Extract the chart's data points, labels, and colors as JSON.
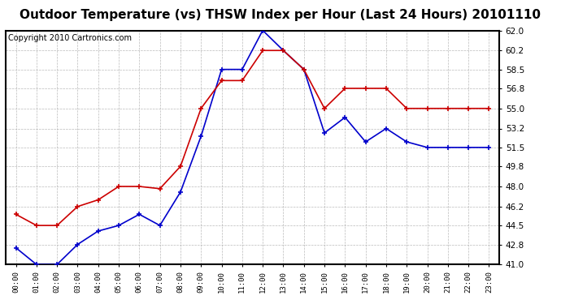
{
  "title": "Outdoor Temperature (vs) THSW Index per Hour (Last 24 Hours) 20101110",
  "copyright": "Copyright 2010 Cartronics.com",
  "hours": [
    "00:00",
    "01:00",
    "02:00",
    "03:00",
    "04:00",
    "05:00",
    "06:00",
    "07:00",
    "08:00",
    "09:00",
    "10:00",
    "11:00",
    "12:00",
    "13:00",
    "14:00",
    "15:00",
    "16:00",
    "17:00",
    "18:00",
    "19:00",
    "20:00",
    "21:00",
    "22:00",
    "23:00"
  ],
  "temp_blue": [
    42.5,
    41.0,
    41.0,
    42.8,
    44.0,
    44.5,
    45.5,
    44.5,
    47.5,
    52.5,
    58.5,
    58.5,
    62.0,
    60.2,
    58.5,
    52.8,
    54.2,
    52.0,
    53.2,
    52.0,
    51.5,
    51.5,
    51.5,
    51.5
  ],
  "thsw_red": [
    45.5,
    44.5,
    44.5,
    46.2,
    46.8,
    48.0,
    48.0,
    47.8,
    49.8,
    55.0,
    57.5,
    57.5,
    60.2,
    60.2,
    58.5,
    55.0,
    56.8,
    56.8,
    56.8,
    55.0,
    55.0,
    55.0,
    55.0,
    55.0
  ],
  "ymin": 41.0,
  "ymax": 62.0,
  "yticks": [
    41.0,
    42.8,
    44.5,
    46.2,
    48.0,
    49.8,
    51.5,
    53.2,
    55.0,
    56.8,
    58.5,
    60.2,
    62.0
  ],
  "blue_color": "#0000cc",
  "red_color": "#cc0000",
  "bg_color": "#ffffff",
  "grid_color": "#aaaaaa",
  "title_fontsize": 11,
  "copyright_fontsize": 7
}
